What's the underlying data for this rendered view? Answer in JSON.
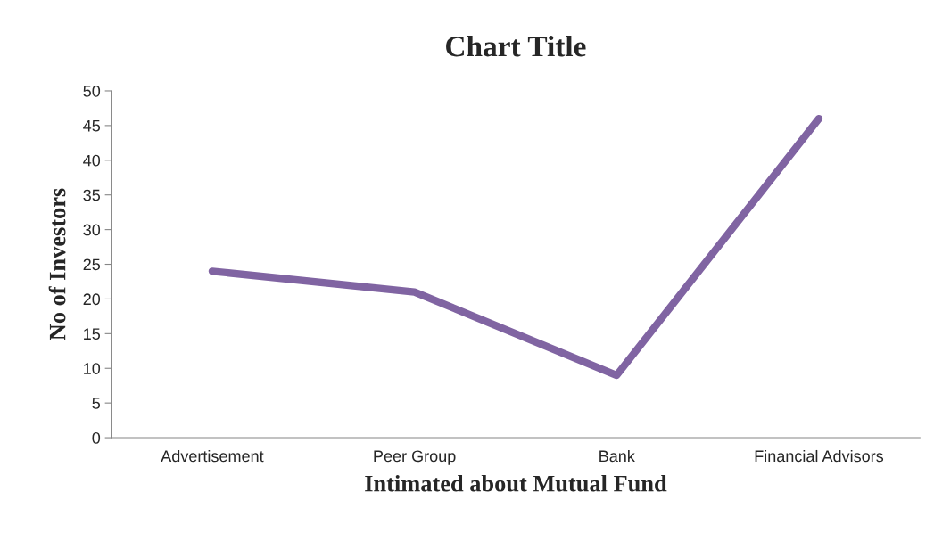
{
  "chart_data": {
    "type": "line",
    "title": "Chart Title",
    "xlabel": "Intimated about Mutual Fund",
    "ylabel": "No of Investors",
    "categories": [
      "Advertisement",
      "Peer Group",
      "Bank",
      "Financial Advisors"
    ],
    "series": [
      {
        "color": "#8064a2",
        "values": [
          24,
          21,
          9,
          46
        ]
      }
    ],
    "ylim": [
      0,
      50
    ],
    "yticks": [
      0,
      5,
      10,
      15,
      20,
      25,
      30,
      35,
      40,
      45,
      50
    ],
    "grid": false,
    "marker": "none",
    "line_style": "solid"
  }
}
